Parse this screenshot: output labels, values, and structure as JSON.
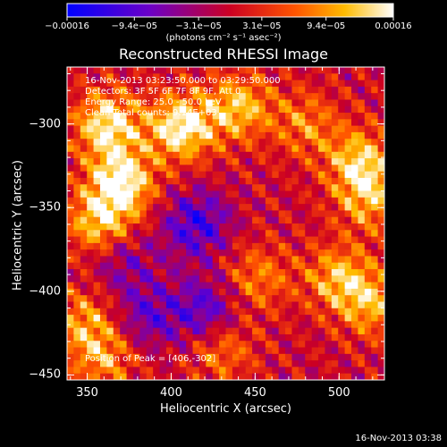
{
  "chart_data": {
    "type": "heatmap",
    "title": "Reconstructed RHESSI Image",
    "xlabel": "Heliocentric X (arcsec)",
    "ylabel": "Heliocentric Y (arcsec)",
    "xlim": [
      338,
      527
    ],
    "ylim": [
      -453,
      -266
    ],
    "xticks": [
      350,
      400,
      450,
      500
    ],
    "yticks": [
      -300,
      -350,
      -400,
      -450
    ],
    "colorbar": {
      "range": [
        -0.00016,
        0.00016
      ],
      "ticks": [
        -0.00016,
        -9.4e-05,
        -3.1e-05,
        3.1e-05,
        9.4e-05,
        0.00016
      ],
      "tick_labels": [
        "−0.00016",
        "−9.4e−05",
        "−3.1e−05",
        "3.1e−05",
        "9.4e−05",
        "0.00016"
      ],
      "units": "(photons cm⁻² s⁻¹ asec⁻²)"
    },
    "colors": [
      "#1a1aff",
      "#8a2be2",
      "#ff2200",
      "#ff9900",
      "#ffffe0"
    ],
    "peak": [
      406,
      -302
    ],
    "hotspots": [
      {
        "x": 362,
        "y": -300,
        "value": 0.00015
      },
      {
        "x": 370,
        "y": -335,
        "value": 0.00016
      },
      {
        "x": 358,
        "y": -360,
        "value": 0.00013
      },
      {
        "x": 406,
        "y": -302,
        "value": 0.00016
      },
      {
        "x": 440,
        "y": -290,
        "value": 0.00012
      },
      {
        "x": 512,
        "y": -322,
        "value": 0.00012
      },
      {
        "x": 518,
        "y": -345,
        "value": 0.0001
      },
      {
        "x": 500,
        "y": -392,
        "value": 0.00011
      },
      {
        "x": 520,
        "y": -408,
        "value": 0.0001
      },
      {
        "x": 348,
        "y": -418,
        "value": 9e-05
      },
      {
        "x": 360,
        "y": -440,
        "value": 9e-05
      },
      {
        "x": 430,
        "y": -435,
        "value": 8e-05
      },
      {
        "x": 452,
        "y": -392,
        "value": 8e-05
      },
      {
        "x": 480,
        "y": -300,
        "value": 8e-05
      }
    ],
    "coldspots": [
      {
        "x": 415,
        "y": -360,
        "value": -0.00011
      },
      {
        "x": 420,
        "y": -412,
        "value": -0.0001
      },
      {
        "x": 370,
        "y": -380,
        "value": -7e-05
      },
      {
        "x": 385,
        "y": -415,
        "value": -8e-05
      }
    ]
  },
  "annotations": {
    "time_range": "16-Nov-2013 03:23:50.000 to 03:29:50.000",
    "detectors": "Detectors: 3F 5F 6F 7F 8F 9F, Att 0",
    "energy": "Energy Range: 25.0 - 50.0 keV",
    "method": "Clean     Total counts: 9.14E+03",
    "peak_label": "Position of Peak = [406,-302]"
  },
  "timestamp": "16-Nov-2013 03:38"
}
